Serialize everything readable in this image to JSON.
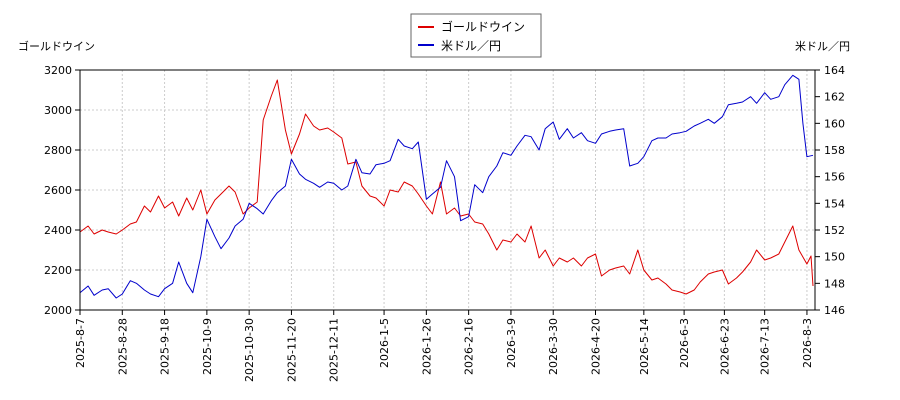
{
  "chart_data": {
    "type": "line",
    "left_axis_label": "ゴールドウイン",
    "right_axis_label": "米ドル／円",
    "left_ylim": [
      2000,
      3200
    ],
    "left_yticks": [
      2000,
      2200,
      2400,
      2600,
      2800,
      3000,
      3200
    ],
    "right_ylim": [
      146,
      164
    ],
    "right_yticks": [
      146,
      148,
      150,
      152,
      154,
      156,
      158,
      160,
      162,
      164
    ],
    "x_start": "2025-08-07",
    "x_end": "2026-08-07",
    "x_tick_labels": [
      "2025-8-7",
      "2025-8-28",
      "2025-9-18",
      "2025-10-9",
      "2025-10-30",
      "2025-11-20",
      "2025-12-11",
      "2026-1-5",
      "2026-1-26",
      "2026-2-16",
      "2026-3-9",
      "2026-3-30",
      "2026-4-20",
      "2026-5-14",
      "2026-6-3",
      "2026-6-23",
      "2026-7-13",
      "2026-8-3"
    ],
    "grid": true,
    "legend_position": "top-center",
    "series": [
      {
        "name": "ゴールドウイン",
        "axis": "left",
        "color": "#dd0000",
        "points": [
          [
            "2025-08-07",
            2390
          ],
          [
            "2025-08-11",
            2420
          ],
          [
            "2025-08-14",
            2380
          ],
          [
            "2025-08-18",
            2400
          ],
          [
            "2025-08-21",
            2390
          ],
          [
            "2025-08-25",
            2380
          ],
          [
            "2025-08-28",
            2400
          ],
          [
            "2025-09-01",
            2430
          ],
          [
            "2025-09-04",
            2440
          ],
          [
            "2025-09-08",
            2520
          ],
          [
            "2025-09-11",
            2490
          ],
          [
            "2025-09-15",
            2570
          ],
          [
            "2025-09-18",
            2510
          ],
          [
            "2025-09-22",
            2540
          ],
          [
            "2025-09-25",
            2470
          ],
          [
            "2025-09-29",
            2560
          ],
          [
            "2025-10-02",
            2500
          ],
          [
            "2025-10-06",
            2600
          ],
          [
            "2025-10-09",
            2480
          ],
          [
            "2025-10-13",
            2550
          ],
          [
            "2025-10-16",
            2580
          ],
          [
            "2025-10-20",
            2620
          ],
          [
            "2025-10-23",
            2590
          ],
          [
            "2025-10-27",
            2480
          ],
          [
            "2025-10-30",
            2510
          ],
          [
            "2025-11-03",
            2540
          ],
          [
            "2025-11-06",
            2950
          ],
          [
            "2025-11-10",
            3070
          ],
          [
            "2025-11-13",
            3150
          ],
          [
            "2025-11-17",
            2900
          ],
          [
            "2025-11-20",
            2780
          ],
          [
            "2025-11-24",
            2880
          ],
          [
            "2025-11-27",
            2980
          ],
          [
            "2025-12-01",
            2920
          ],
          [
            "2025-12-04",
            2900
          ],
          [
            "2025-12-08",
            2910
          ],
          [
            "2025-12-11",
            2890
          ],
          [
            "2025-12-15",
            2860
          ],
          [
            "2025-12-18",
            2730
          ],
          [
            "2025-12-22",
            2740
          ],
          [
            "2025-12-25",
            2620
          ],
          [
            "2025-12-29",
            2570
          ],
          [
            "2026-01-01",
            2560
          ],
          [
            "2026-01-05",
            2520
          ],
          [
            "2026-01-08",
            2600
          ],
          [
            "2026-01-12",
            2590
          ],
          [
            "2026-01-15",
            2640
          ],
          [
            "2026-01-19",
            2620
          ],
          [
            "2026-01-22",
            2580
          ],
          [
            "2026-01-26",
            2520
          ],
          [
            "2026-01-29",
            2480
          ],
          [
            "2026-02-02",
            2640
          ],
          [
            "2026-02-05",
            2480
          ],
          [
            "2026-02-09",
            2510
          ],
          [
            "2026-02-12",
            2470
          ],
          [
            "2026-02-16",
            2480
          ],
          [
            "2026-02-19",
            2440
          ],
          [
            "2026-02-23",
            2430
          ],
          [
            "2026-02-26",
            2380
          ],
          [
            "2026-03-02",
            2300
          ],
          [
            "2026-03-05",
            2350
          ],
          [
            "2026-03-09",
            2340
          ],
          [
            "2026-03-12",
            2380
          ],
          [
            "2026-03-16",
            2340
          ],
          [
            "2026-03-19",
            2420
          ],
          [
            "2026-03-23",
            2260
          ],
          [
            "2026-03-26",
            2300
          ],
          [
            "2026-03-30",
            2220
          ],
          [
            "2026-04-02",
            2260
          ],
          [
            "2026-04-06",
            2240
          ],
          [
            "2026-04-09",
            2260
          ],
          [
            "2026-04-13",
            2220
          ],
          [
            "2026-04-16",
            2260
          ],
          [
            "2026-04-20",
            2280
          ],
          [
            "2026-04-23",
            2170
          ],
          [
            "2026-04-27",
            2200
          ],
          [
            "2026-04-30",
            2210
          ],
          [
            "2026-05-04",
            2220
          ],
          [
            "2026-05-07",
            2180
          ],
          [
            "2026-05-11",
            2300
          ],
          [
            "2026-05-14",
            2200
          ],
          [
            "2026-05-18",
            2150
          ],
          [
            "2026-05-21",
            2160
          ],
          [
            "2026-05-25",
            2130
          ],
          [
            "2026-05-28",
            2100
          ],
          [
            "2026-06-01",
            2090
          ],
          [
            "2026-06-04",
            2080
          ],
          [
            "2026-06-08",
            2100
          ],
          [
            "2026-06-11",
            2140
          ],
          [
            "2026-06-15",
            2180
          ],
          [
            "2026-06-18",
            2190
          ],
          [
            "2026-06-22",
            2200
          ],
          [
            "2026-06-25",
            2130
          ],
          [
            "2026-06-29",
            2160
          ],
          [
            "2026-07-02",
            2190
          ],
          [
            "2026-07-06",
            2240
          ],
          [
            "2026-07-09",
            2300
          ],
          [
            "2026-07-13",
            2250
          ],
          [
            "2026-07-16",
            2260
          ],
          [
            "2026-07-20",
            2280
          ],
          [
            "2026-07-23",
            2340
          ],
          [
            "2026-07-27",
            2420
          ],
          [
            "2026-07-30",
            2300
          ],
          [
            "2026-08-03",
            2230
          ],
          [
            "2026-08-05",
            2270
          ],
          [
            "2026-08-06",
            2120
          ]
        ]
      },
      {
        "name": "米ドル／円",
        "axis": "right",
        "color": "#0000cc",
        "points": [
          [
            "2025-08-07",
            147.3
          ],
          [
            "2025-08-11",
            147.8
          ],
          [
            "2025-08-14",
            147.1
          ],
          [
            "2025-08-18",
            147.5
          ],
          [
            "2025-08-21",
            147.6
          ],
          [
            "2025-08-25",
            146.9
          ],
          [
            "2025-08-28",
            147.2
          ],
          [
            "2025-09-01",
            148.2
          ],
          [
            "2025-09-04",
            148.0
          ],
          [
            "2025-09-08",
            147.5
          ],
          [
            "2025-09-11",
            147.2
          ],
          [
            "2025-09-15",
            147.0
          ],
          [
            "2025-09-18",
            147.6
          ],
          [
            "2025-09-22",
            148.0
          ],
          [
            "2025-09-25",
            149.6
          ],
          [
            "2025-09-29",
            148.0
          ],
          [
            "2025-10-02",
            147.3
          ],
          [
            "2025-10-06",
            150.0
          ],
          [
            "2025-10-09",
            152.8
          ],
          [
            "2025-10-13",
            151.5
          ],
          [
            "2025-10-16",
            150.6
          ],
          [
            "2025-10-20",
            151.4
          ],
          [
            "2025-10-23",
            152.3
          ],
          [
            "2025-10-27",
            152.8
          ],
          [
            "2025-10-30",
            154.0
          ],
          [
            "2025-11-03",
            153.6
          ],
          [
            "2025-11-06",
            153.2
          ],
          [
            "2025-11-10",
            154.2
          ],
          [
            "2025-11-13",
            154.8
          ],
          [
            "2025-11-17",
            155.3
          ],
          [
            "2025-11-20",
            157.3
          ],
          [
            "2025-11-24",
            156.2
          ],
          [
            "2025-11-27",
            155.8
          ],
          [
            "2025-12-01",
            155.5
          ],
          [
            "2025-12-04",
            155.2
          ],
          [
            "2025-12-08",
            155.6
          ],
          [
            "2025-12-11",
            155.5
          ],
          [
            "2025-12-15",
            155.0
          ],
          [
            "2025-12-18",
            155.3
          ],
          [
            "2025-12-22",
            157.3
          ],
          [
            "2025-12-25",
            156.3
          ],
          [
            "2025-12-29",
            156.2
          ],
          [
            "2026-01-01",
            156.9
          ],
          [
            "2026-01-05",
            157.0
          ],
          [
            "2026-01-08",
            157.2
          ],
          [
            "2026-01-12",
            158.8
          ],
          [
            "2026-01-15",
            158.3
          ],
          [
            "2026-01-19",
            158.1
          ],
          [
            "2026-01-22",
            158.6
          ],
          [
            "2026-01-26",
            154.3
          ],
          [
            "2026-01-29",
            154.7
          ],
          [
            "2026-02-02",
            155.2
          ],
          [
            "2026-02-05",
            157.2
          ],
          [
            "2026-02-09",
            156.0
          ],
          [
            "2026-02-12",
            152.7
          ],
          [
            "2026-02-16",
            153.0
          ],
          [
            "2026-02-19",
            155.4
          ],
          [
            "2026-02-23",
            154.8
          ],
          [
            "2026-02-26",
            156.0
          ],
          [
            "2026-03-02",
            156.8
          ],
          [
            "2026-03-05",
            157.8
          ],
          [
            "2026-03-09",
            157.6
          ],
          [
            "2026-03-12",
            158.3
          ],
          [
            "2026-03-16",
            159.1
          ],
          [
            "2026-03-19",
            159.0
          ],
          [
            "2026-03-23",
            158.0
          ],
          [
            "2026-03-26",
            159.6
          ],
          [
            "2026-03-30",
            160.1
          ],
          [
            "2026-04-02",
            158.8
          ],
          [
            "2026-04-06",
            159.6
          ],
          [
            "2026-04-09",
            158.9
          ],
          [
            "2026-04-13",
            159.3
          ],
          [
            "2026-04-16",
            158.7
          ],
          [
            "2026-04-20",
            158.5
          ],
          [
            "2026-04-23",
            159.2
          ],
          [
            "2026-04-27",
            159.4
          ],
          [
            "2026-04-30",
            159.5
          ],
          [
            "2026-05-04",
            159.6
          ],
          [
            "2026-05-07",
            156.8
          ],
          [
            "2026-05-11",
            157.0
          ],
          [
            "2026-05-14",
            157.5
          ],
          [
            "2026-05-18",
            158.7
          ],
          [
            "2026-05-21",
            158.9
          ],
          [
            "2026-05-25",
            158.9
          ],
          [
            "2026-05-28",
            159.2
          ],
          [
            "2026-06-01",
            159.3
          ],
          [
            "2026-06-04",
            159.4
          ],
          [
            "2026-06-08",
            159.8
          ],
          [
            "2026-06-11",
            160.0
          ],
          [
            "2026-06-15",
            160.3
          ],
          [
            "2026-06-18",
            160.0
          ],
          [
            "2026-06-22",
            160.5
          ],
          [
            "2026-06-25",
            161.4
          ],
          [
            "2026-06-29",
            161.5
          ],
          [
            "2026-07-02",
            161.6
          ],
          [
            "2026-07-06",
            162.0
          ],
          [
            "2026-07-09",
            161.5
          ],
          [
            "2026-07-13",
            162.3
          ],
          [
            "2026-07-16",
            161.8
          ],
          [
            "2026-07-20",
            162.0
          ],
          [
            "2026-07-23",
            162.9
          ],
          [
            "2026-07-27",
            163.6
          ],
          [
            "2026-07-30",
            163.3
          ],
          [
            "2026-08-01",
            160.0
          ],
          [
            "2026-08-03",
            157.5
          ],
          [
            "2026-08-06",
            157.6
          ]
        ]
      }
    ]
  }
}
